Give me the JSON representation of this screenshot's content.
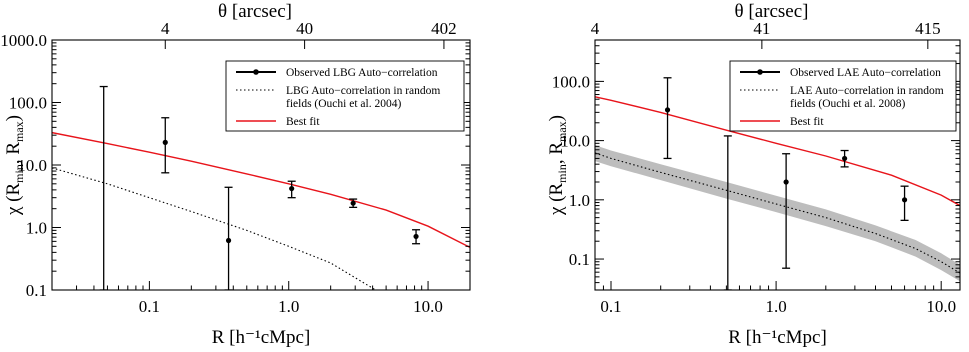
{
  "chart_data": [
    {
      "type": "scatter",
      "panel": "left",
      "xscale": "log",
      "yscale": "log",
      "xlim": [
        0.02,
        20
      ],
      "ylim": [
        0.1,
        1000
      ],
      "xlabel": "R  [h⁻¹cMpc]",
      "ylabel_main": "χ (R",
      "ylabel_sub1": "min",
      "ylabel_mid": ", R",
      "ylabel_sub2": "max",
      "ylabel_end": ")",
      "top_axis_label": "θ  [arcsec]",
      "top_ticks": [
        {
          "label": "4",
          "x": 0.13
        },
        {
          "label": "40",
          "x": 1.3
        },
        {
          "label": "402",
          "x": 13
        }
      ],
      "xticks": [
        {
          "label": "0.1",
          "value": 0.1
        },
        {
          "label": "1.0",
          "value": 1
        },
        {
          "label": "10.0",
          "value": 10
        }
      ],
      "yticks": [
        {
          "label": "0.1",
          "value": 0.1
        },
        {
          "label": "1.0",
          "value": 1
        },
        {
          "label": "10.0",
          "value": 10
        },
        {
          "label": "100.0",
          "value": 100
        },
        {
          "label": "1000.0",
          "value": 1000
        }
      ],
      "legend": {
        "placement": "top-right",
        "entries": [
          {
            "style": "errorbar",
            "lines": [
              "Observed LBG Auto−correlation"
            ]
          },
          {
            "style": "dotted",
            "lines": [
              "LBG Auto−correlation in random",
              "fields (Ouchi et al. 2004)"
            ]
          },
          {
            "style": "red",
            "lines": [
              "Best fit"
            ]
          }
        ]
      },
      "observed": [
        {
          "x": 0.047,
          "y": null,
          "ylow": 0.1,
          "yhigh": 180
        },
        {
          "x": 0.13,
          "y": 23,
          "ylow": 7.5,
          "yhigh": 57
        },
        {
          "x": 0.37,
          "y": 0.62,
          "ylow": 0.1,
          "yhigh": 4.4
        },
        {
          "x": 1.05,
          "y": 4.2,
          "ylow": 3.0,
          "yhigh": 5.5
        },
        {
          "x": 2.9,
          "y": 2.45,
          "ylow": 2.1,
          "yhigh": 2.85
        },
        {
          "x": 8.2,
          "y": 0.72,
          "ylow": 0.55,
          "yhigh": 0.92
        }
      ],
      "random_fields": {
        "x": [
          0.02,
          0.05,
          0.1,
          0.2,
          0.5,
          1.0,
          2.0,
          4.2
        ],
        "y": [
          9.0,
          5.0,
          3.0,
          1.8,
          0.9,
          0.5,
          0.27,
          0.1
        ]
      },
      "best_fit": {
        "x": [
          0.02,
          0.05,
          0.1,
          0.2,
          0.5,
          1.0,
          2.0,
          5.0,
          10.0,
          20.0
        ],
        "y": [
          33,
          22,
          16,
          11.5,
          7.2,
          5.0,
          3.4,
          1.9,
          1.05,
          0.48
        ]
      }
    },
    {
      "type": "scatter",
      "panel": "right",
      "xscale": "log",
      "yscale": "log",
      "xlim": [
        0.08,
        13
      ],
      "ylim": [
        0.03,
        500
      ],
      "xlabel": "R  [h⁻¹cMpc]",
      "ylabel_main": "χ (R",
      "ylabel_sub1": "min",
      "ylabel_mid": ", R",
      "ylabel_sub2": "max",
      "ylabel_end": ")",
      "top_axis_label": "θ  [arcsec]",
      "top_ticks": [
        {
          "label": "4",
          "x": 0.08
        },
        {
          "label": "41",
          "x": 0.82
        },
        {
          "label": "415",
          "x": 8.3
        }
      ],
      "xticks": [
        {
          "label": "0.1",
          "value": 0.1
        },
        {
          "label": "1.0",
          "value": 1
        },
        {
          "label": "10.0",
          "value": 10
        }
      ],
      "yticks": [
        {
          "label": "0.1",
          "value": 0.1
        },
        {
          "label": "1.0",
          "value": 1
        },
        {
          "label": "10.0",
          "value": 10
        },
        {
          "label": "100.0",
          "value": 100
        }
      ],
      "legend": {
        "placement": "top-right",
        "entries": [
          {
            "style": "errorbar",
            "lines": [
              "Observed LAE Auto−correlation"
            ]
          },
          {
            "style": "dotted",
            "lines": [
              "LAE Auto−correlation in random",
              "fields (Ouchi et al. 2008)"
            ]
          },
          {
            "style": "red",
            "lines": [
              "Best fit"
            ]
          }
        ]
      },
      "observed": [
        {
          "x": 0.22,
          "y": 33,
          "ylow": 5,
          "yhigh": 115
        },
        {
          "x": 0.51,
          "y": null,
          "ylow": 0.03,
          "yhigh": 12
        },
        {
          "x": 1.15,
          "y": 2.0,
          "ylow": 0.07,
          "yhigh": 6.0
        },
        {
          "x": 2.6,
          "y": 5.0,
          "ylow": 3.6,
          "yhigh": 6.8
        },
        {
          "x": 6.0,
          "y": 1.0,
          "ylow": 0.45,
          "yhigh": 1.7
        }
      ],
      "random_fields": {
        "x": [
          0.08,
          0.1,
          0.2,
          0.5,
          1.0,
          2.0,
          4.0,
          7.0,
          10.0,
          13.0
        ],
        "y": [
          6.2,
          5.0,
          2.9,
          1.45,
          0.85,
          0.5,
          0.27,
          0.15,
          0.09,
          0.058
        ],
        "ylow": [
          4.5,
          3.7,
          2.15,
          1.05,
          0.62,
          0.36,
          0.2,
          0.11,
          0.065,
          0.042
        ],
        "yhigh": [
          8.4,
          6.8,
          4.0,
          2.0,
          1.17,
          0.69,
          0.37,
          0.21,
          0.125,
          0.08
        ]
      },
      "best_fit": {
        "x": [
          0.08,
          0.1,
          0.2,
          0.5,
          1.0,
          2.0,
          5.0,
          10.0,
          13.0
        ],
        "y": [
          55,
          48,
          30,
          15,
          9.0,
          5.5,
          2.6,
          1.2,
          0.8
        ]
      }
    }
  ]
}
